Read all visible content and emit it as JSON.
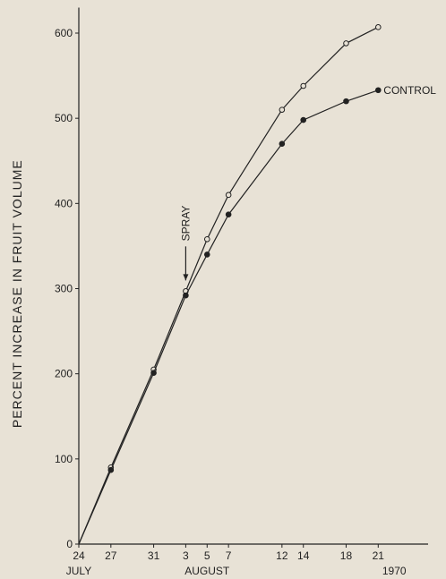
{
  "chart_data": {
    "type": "line",
    "xlabel": "",
    "ylabel": "PERCENT INCREASE IN FRUIT VOLUME",
    "ylim": [
      0,
      630
    ],
    "y_ticks": [
      0,
      100,
      200,
      300,
      400,
      500,
      600
    ],
    "x_ticks": [
      {
        "day": 0,
        "label": "24"
      },
      {
        "day": 3,
        "label": "27"
      },
      {
        "day": 7,
        "label": "31"
      },
      {
        "day": 10,
        "label": "3"
      },
      {
        "day": 12,
        "label": "5"
      },
      {
        "day": 14,
        "label": "7"
      },
      {
        "day": 19,
        "label": "12"
      },
      {
        "day": 21,
        "label": "14"
      },
      {
        "day": 25,
        "label": "18"
      },
      {
        "day": 28,
        "label": "21"
      }
    ],
    "x_sublabels": [
      {
        "day": 0,
        "label": "JULY"
      },
      {
        "day": 12,
        "label": "AUGUST"
      },
      {
        "day": 29.5,
        "label": "1970"
      }
    ],
    "series": [
      {
        "name": "",
        "marker": "open",
        "x": [
          0,
          3,
          7,
          10,
          12,
          14,
          19,
          21,
          25,
          28
        ],
        "y": [
          0,
          90,
          205,
          297,
          358,
          410,
          510,
          538,
          588,
          607
        ]
      },
      {
        "name": "CONTROL",
        "marker": "filled",
        "x": [
          0,
          3,
          7,
          10,
          12,
          14,
          19,
          21,
          25,
          28
        ],
        "y": [
          0,
          87,
          201,
          292,
          340,
          387,
          470,
          498,
          520,
          533
        ]
      }
    ],
    "annotations": [
      {
        "text": "SPRAY",
        "x": 10,
        "y": 297,
        "arrow": "down"
      }
    ]
  }
}
